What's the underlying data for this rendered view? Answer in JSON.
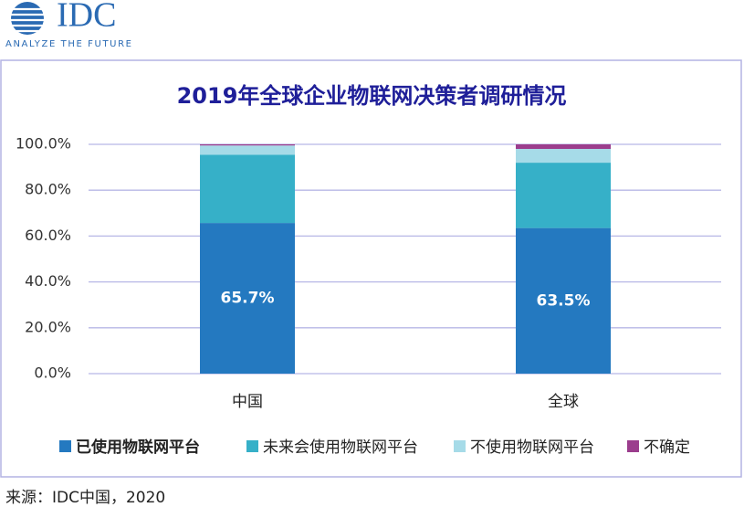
{
  "logo": {
    "name": "IDC",
    "tagline": "ANALYZE THE FUTURE"
  },
  "chart_data": {
    "type": "stacked_bar",
    "title": "2019年全球企业物联网决策者调研情况",
    "categories": [
      "中国",
      "全球"
    ],
    "series": [
      {
        "name": "已使用物联网平台",
        "color": "#2479c0",
        "values": [
          65.7,
          63.5
        ],
        "value_labels": [
          "65.7%",
          "63.5%"
        ]
      },
      {
        "name": "未来会使用物联网平台",
        "color": "#36b0c8",
        "values": [
          29.8,
          28.5
        ]
      },
      {
        "name": "不使用物联网平台",
        "color": "#a6dbe8",
        "values": [
          4.0,
          6.0
        ]
      },
      {
        "name": "不确定",
        "color": "#9b3d8d",
        "values": [
          0.5,
          2.0
        ]
      }
    ],
    "ylim": [
      0,
      100
    ],
    "yticks": [
      {
        "value": 0,
        "label": "0.0%"
      },
      {
        "value": 20,
        "label": "20.0%"
      },
      {
        "value": 40,
        "label": "40.0%"
      },
      {
        "value": 60,
        "label": "60.0%"
      },
      {
        "value": 80,
        "label": "80.0%"
      },
      {
        "value": 100,
        "label": "100.0%"
      }
    ],
    "grid": true,
    "legend": "bottom"
  },
  "source": "来源：IDC中国，2020"
}
